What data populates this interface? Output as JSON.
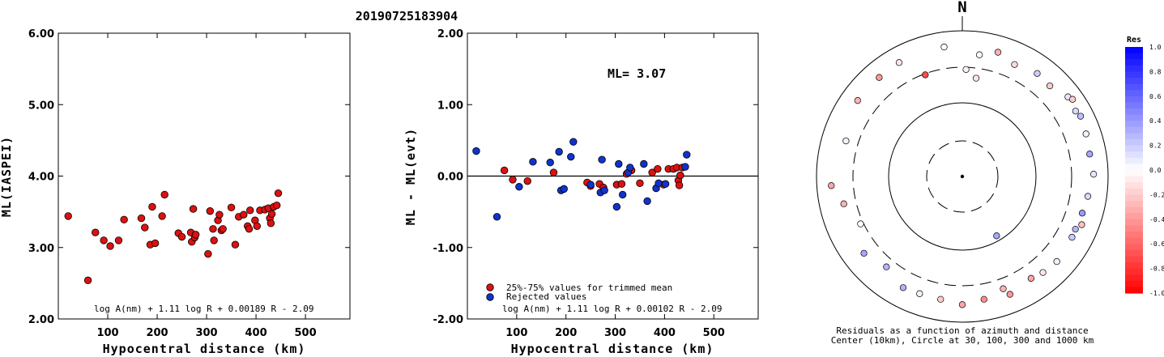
{
  "title": "20190725183904",
  "colors": {
    "event_red": "#dd1111",
    "rejected_blue": "#1133cc"
  },
  "chart_data": [
    {
      "type": "scatter",
      "id": "ml-vs-distance",
      "xlabel": "Hypocentral distance (km)",
      "ylabel": "ML(IASPEI)",
      "xlim": [
        0,
        590
      ],
      "ylim": [
        2.0,
        6.0
      ],
      "xticks": [
        "100",
        "200",
        "300",
        "400",
        "500"
      ],
      "xtick_values": [
        100,
        200,
        300,
        400,
        500
      ],
      "yticks": [
        "2.00",
        "3.00",
        "4.00",
        "5.00",
        "6.00"
      ],
      "ytick_values": [
        2.0,
        3.0,
        4.0,
        5.0,
        6.0
      ],
      "formula": "log A(nm) + 1.11 log R + 0.00189 R - 2.09",
      "grid": false,
      "series": [
        {
          "color": "#dd1111",
          "points": [
            [
              20,
              3.44
            ],
            [
              60,
              2.54
            ],
            [
              75,
              3.21
            ],
            [
              92,
              3.1
            ],
            [
              105,
              3.02
            ],
            [
              122,
              3.1
            ],
            [
              133,
              3.39
            ],
            [
              168,
              3.41
            ],
            [
              175,
              3.28
            ],
            [
              186,
              3.04
            ],
            [
              190,
              3.57
            ],
            [
              196,
              3.06
            ],
            [
              210,
              3.44
            ],
            [
              215,
              3.74
            ],
            [
              243,
              3.2
            ],
            [
              250,
              3.15
            ],
            [
              268,
              3.21
            ],
            [
              270,
              3.08
            ],
            [
              273,
              3.54
            ],
            [
              276,
              3.14
            ],
            [
              278,
              3.18
            ],
            [
              303,
              2.91
            ],
            [
              307,
              3.51
            ],
            [
              313,
              3.26
            ],
            [
              315,
              3.1
            ],
            [
              323,
              3.38
            ],
            [
              326,
              3.46
            ],
            [
              330,
              3.24
            ],
            [
              333,
              3.26
            ],
            [
              350,
              3.56
            ],
            [
              358,
              3.04
            ],
            [
              365,
              3.43
            ],
            [
              375,
              3.46
            ],
            [
              383,
              3.3
            ],
            [
              386,
              3.26
            ],
            [
              388,
              3.52
            ],
            [
              398,
              3.38
            ],
            [
              402,
              3.3
            ],
            [
              408,
              3.52
            ],
            [
              418,
              3.53
            ],
            [
              425,
              3.55
            ],
            [
              428,
              3.41
            ],
            [
              430,
              3.34
            ],
            [
              432,
              3.47
            ],
            [
              436,
              3.57
            ],
            [
              442,
              3.59
            ],
            [
              445,
              3.76
            ]
          ]
        }
      ]
    },
    {
      "type": "scatter",
      "id": "residual-vs-distance",
      "xlabel": "Hypocentral distance (km)",
      "ylabel": "ML - ML(evt)",
      "xlim": [
        0,
        590
      ],
      "ylim": [
        -2.0,
        2.0
      ],
      "xticks": [
        "100",
        "200",
        "300",
        "400",
        "500"
      ],
      "xtick_values": [
        100,
        200,
        300,
        400,
        500
      ],
      "yticks": [
        "-2.00",
        "-1.00",
        "0.00",
        "1.00",
        "2.00"
      ],
      "ytick_values": [
        -2.0,
        -1.0,
        0.0,
        1.0,
        2.0
      ],
      "zero_line": 0,
      "annotation": "ML= 3.07",
      "formula": "log A(nm) + 1.11 log R + 0.00102 R - 2.09",
      "legend": [
        "25%-75% values for trimmed mean",
        "Rejected values"
      ],
      "grid": false,
      "series": [
        {
          "color": "#dd1111",
          "points": [
            [
              75,
              0.08
            ],
            [
              92,
              -0.05
            ],
            [
              122,
              -0.07
            ],
            [
              175,
              0.05
            ],
            [
              243,
              -0.09
            ],
            [
              250,
              -0.14
            ],
            [
              268,
              -0.11
            ],
            [
              276,
              -0.16
            ],
            [
              303,
              -0.12
            ],
            [
              313,
              -0.11
            ],
            [
              323,
              0.03
            ],
            [
              333,
              0.08
            ],
            [
              350,
              -0.1
            ],
            [
              375,
              0.05
            ],
            [
              386,
              0.1
            ],
            [
              398,
              -0.12
            ],
            [
              408,
              0.1
            ],
            [
              418,
              0.1
            ],
            [
              425,
              0.12
            ],
            [
              428,
              -0.06
            ],
            [
              430,
              -0.13
            ],
            [
              432,
              0.01
            ],
            [
              436,
              0.12
            ]
          ]
        },
        {
          "color": "#1133cc",
          "points": [
            [
              18,
              0.35
            ],
            [
              60,
              -0.57
            ],
            [
              105,
              -0.15
            ],
            [
              133,
              0.2
            ],
            [
              168,
              0.19
            ],
            [
              186,
              0.34
            ],
            [
              190,
              -0.2
            ],
            [
              196,
              -0.18
            ],
            [
              210,
              0.27
            ],
            [
              215,
              0.48
            ],
            [
              250,
              -0.12
            ],
            [
              270,
              -0.23
            ],
            [
              273,
              0.23
            ],
            [
              278,
              -0.2
            ],
            [
              307,
              0.17
            ],
            [
              315,
              -0.26
            ],
            [
              326,
              0.05
            ],
            [
              330,
              0.12
            ],
            [
              358,
              0.17
            ],
            [
              365,
              -0.35
            ],
            [
              383,
              -0.17
            ],
            [
              388,
              -0.1
            ],
            [
              402,
              -0.11
            ],
            [
              442,
              0.13
            ],
            [
              445,
              0.3
            ],
            [
              303,
              -0.43
            ]
          ]
        }
      ]
    },
    {
      "type": "scatter",
      "id": "azimuth-residuals",
      "north_label": "N",
      "caption_line1": "Residuals as a function of azimuth and distance",
      "caption_line2": "Center (10km), Circle at 30, 100, 300 and 1000 km",
      "legend_title": "Res",
      "scale_labels": [
        "1.0",
        "0.8",
        "0.6",
        "0.4",
        "0.2",
        "0.0",
        "-0.2",
        "-0.4",
        "-0.6",
        "-0.8",
        "-1.0"
      ],
      "scale_values": [
        1.0,
        0.8,
        0.6,
        0.4,
        0.2,
        0.0,
        -0.2,
        -0.4,
        -0.6,
        -0.8,
        -1.0
      ],
      "rings_km": [
        30,
        100,
        300,
        1000
      ],
      "stations": [
        {
          "az": 2,
          "dist": 280,
          "res": -0.05
        },
        {
          "az": 8,
          "dist": 470,
          "res": 0.02
        },
        {
          "az": 16,
          "dist": 580,
          "res": -0.3
        },
        {
          "az": 25,
          "dist": 480,
          "res": -0.15
        },
        {
          "az": 36,
          "dist": 545,
          "res": 0.2
        },
        {
          "az": 44,
          "dist": 520,
          "res": -0.2
        },
        {
          "az": 53,
          "dist": 640,
          "res": 0.1
        },
        {
          "az": 60,
          "dist": 610,
          "res": 0.15
        },
        {
          "az": 55,
          "dist": 690,
          "res": -0.2
        },
        {
          "az": 63,
          "dist": 650,
          "res": 0.25
        },
        {
          "az": 71,
          "dist": 610,
          "res": 0.05
        },
        {
          "az": 80,
          "dist": 580,
          "res": 0.35
        },
        {
          "az": 89,
          "dist": 620,
          "res": 0.1
        },
        {
          "az": 99,
          "dist": 540,
          "res": 0.15
        },
        {
          "az": 107,
          "dist": 510,
          "res": 0.4
        },
        {
          "az": 112,
          "dist": 570,
          "res": -0.25
        },
        {
          "az": 115,
          "dist": 500,
          "res": 0.3
        },
        {
          "az": 119,
          "dist": 510,
          "res": 0.2
        },
        {
          "az": 132,
          "dist": 540,
          "res": 0.05
        },
        {
          "az": 140,
          "dist": 510,
          "res": -0.1
        },
        {
          "az": 146,
          "dist": 470,
          "res": -0.35
        },
        {
          "az": 158,
          "dist": 540,
          "res": -0.4
        },
        {
          "az": 160,
          "dist": 420,
          "res": -0.3
        },
        {
          "az": 170,
          "dist": 500,
          "res": -0.45
        },
        {
          "az": 180,
          "dist": 560,
          "res": -0.35
        },
        {
          "az": 190,
          "dist": 500,
          "res": -0.2
        },
        {
          "az": 200,
          "dist": 500,
          "res": 0.05
        },
        {
          "az": 208,
          "dist": 520,
          "res": 0.3
        },
        {
          "az": 220,
          "dist": 400,
          "res": 0.3
        },
        {
          "az": 232,
          "dist": 500,
          "res": 0.35
        },
        {
          "az": 245,
          "dist": 330,
          "res": 0.0
        },
        {
          "az": 257,
          "dist": 450,
          "res": -0.3
        },
        {
          "az": 266,
          "dist": 620,
          "res": -0.35
        },
        {
          "az": 287,
          "dist": 450,
          "res": 0.05
        },
        {
          "az": 306,
          "dist": 580,
          "res": -0.3
        },
        {
          "az": 320,
          "dist": 580,
          "res": -0.4
        },
        {
          "az": 331,
          "dist": 600,
          "res": -0.1
        },
        {
          "az": 352,
          "dist": 610,
          "res": 0.0
        },
        {
          "az": 340,
          "dist": 290,
          "res": -0.7
        },
        {
          "az": 150,
          "dist": 85,
          "res": 0.35
        },
        {
          "az": 8,
          "dist": 220,
          "res": -0.1
        }
      ]
    }
  ]
}
